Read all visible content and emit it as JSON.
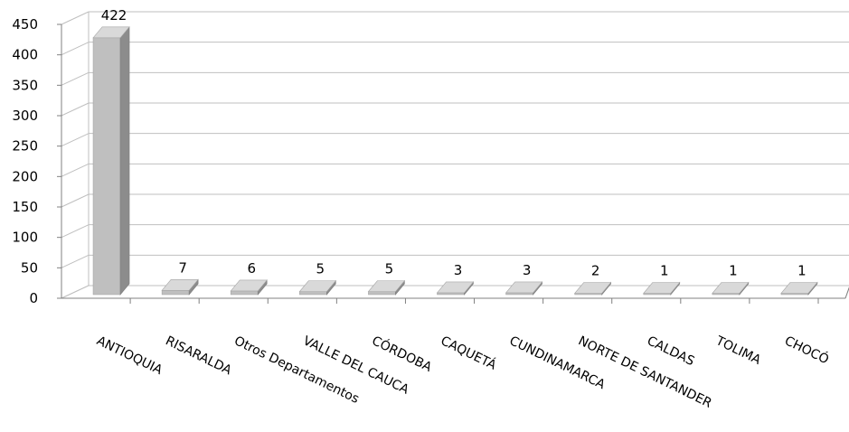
{
  "chart_data": {
    "type": "bar",
    "title": "",
    "xlabel": "",
    "ylabel": "",
    "ylim": [
      0,
      450
    ],
    "yticks": [
      "0",
      "50",
      "100",
      "150",
      "200",
      "250",
      "300",
      "350",
      "400",
      "450"
    ],
    "grid": true,
    "legend": "none",
    "categories": [
      "ANTIOQUIA",
      "RISARALDA",
      "Otros Departamentos",
      "VALLE DEL CAUCA",
      "CÓRDOBA",
      "CAQUETÁ",
      "CUNDINAMARCA",
      "NORTE DE SANTANDER",
      "CALDAS",
      "TOLIMA",
      "CHOCÓ"
    ],
    "values": [
      422,
      7,
      6,
      5,
      5,
      3,
      3,
      2,
      1,
      1,
      1
    ],
    "data_labels": [
      "422",
      "7",
      "6",
      "5",
      "5",
      "3",
      "3",
      "2",
      "1",
      "1",
      "1"
    ],
    "colors": {
      "bar_front": "#bfbfbf",
      "bar_side": "#8c8c8c",
      "bar_top": "#d9d9d9",
      "grid": "#bfbfbf",
      "axis": "#808080"
    }
  }
}
